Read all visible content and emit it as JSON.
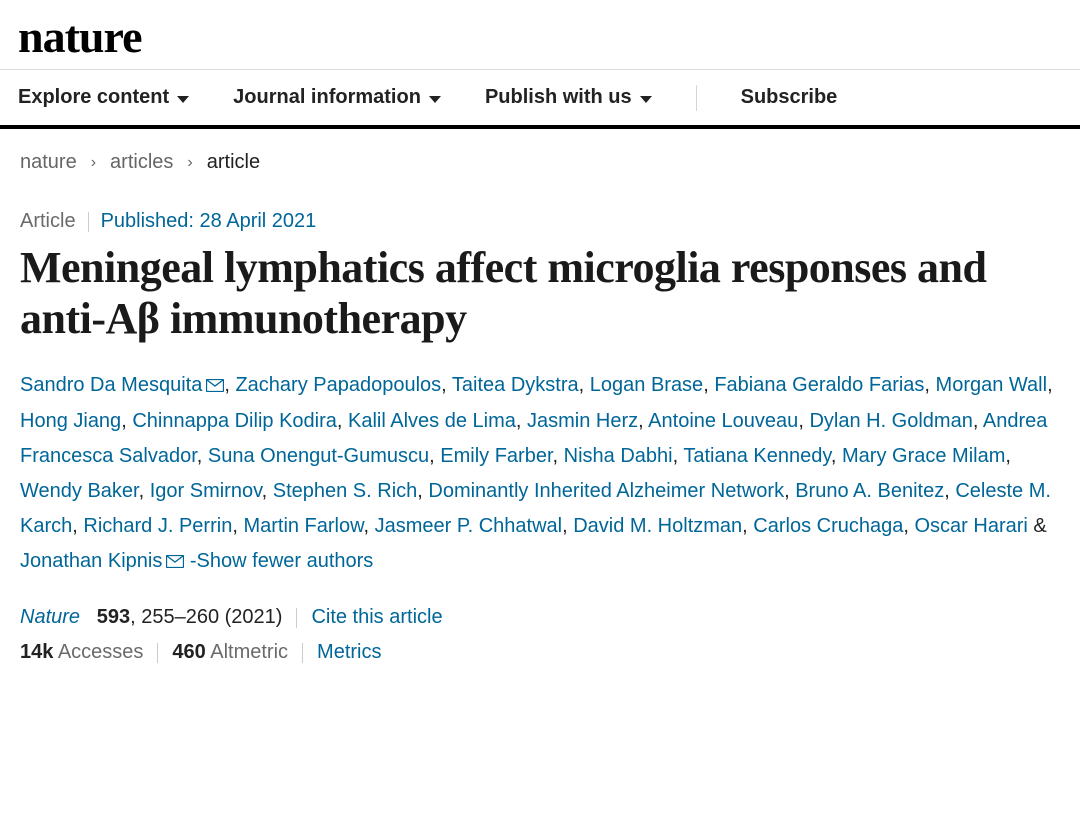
{
  "logo": "nature",
  "nav": {
    "items": [
      {
        "label": "Explore content",
        "has_chevron": true
      },
      {
        "label": "Journal information",
        "has_chevron": true
      },
      {
        "label": "Publish with us",
        "has_chevron": true
      }
    ],
    "subscribe": "Subscribe"
  },
  "breadcrumbs": {
    "items": [
      "nature",
      "articles"
    ],
    "current": "article"
  },
  "article": {
    "type": "Article",
    "published_label": "Published: 28 April 2021",
    "title": "Meningeal lymphatics affect microglia responses and anti-Aβ immunotherapy",
    "authors": [
      {
        "name": "Sandro Da Mesquita",
        "corresponding": true
      },
      {
        "name": "Zachary Papadopoulos"
      },
      {
        "name": "Taitea Dykstra"
      },
      {
        "name": "Logan Brase"
      },
      {
        "name": "Fabiana Geraldo Farias"
      },
      {
        "name": "Morgan Wall"
      },
      {
        "name": "Hong Jiang"
      },
      {
        "name": "Chinnappa Dilip Kodira"
      },
      {
        "name": "Kalil Alves de Lima"
      },
      {
        "name": "Jasmin Herz"
      },
      {
        "name": "Antoine Louveau"
      },
      {
        "name": "Dylan H. Goldman"
      },
      {
        "name": "Andrea Francesca Salvador"
      },
      {
        "name": "Suna Onengut-Gumuscu"
      },
      {
        "name": "Emily Farber"
      },
      {
        "name": "Nisha Dabhi"
      },
      {
        "name": "Tatiana Kennedy"
      },
      {
        "name": "Mary Grace Milam"
      },
      {
        "name": "Wendy Baker"
      },
      {
        "name": "Igor Smirnov"
      },
      {
        "name": "Stephen S. Rich"
      },
      {
        "name": "Dominantly Inherited Alzheimer Network"
      },
      {
        "name": "Bruno A. Benitez"
      },
      {
        "name": "Celeste M. Karch"
      },
      {
        "name": "Richard J. Perrin"
      },
      {
        "name": "Martin Farlow"
      },
      {
        "name": "Jasmeer P. Chhatwal"
      },
      {
        "name": "David M. Holtzman"
      },
      {
        "name": "Carlos Cruchaga"
      },
      {
        "name": "Oscar Harari"
      },
      {
        "name": "Jonathan Kipnis",
        "corresponding": true
      }
    ],
    "toggle_authors_label": "-Show fewer authors",
    "citation": {
      "journal": "Nature",
      "volume": "593",
      "pages": "255–260 (2021)",
      "cite_label": "Cite this article"
    },
    "metrics": {
      "accesses_count": "14k",
      "accesses_label": "Accesses",
      "altmetric_count": "460",
      "altmetric_label": "Altmetric",
      "metrics_label": "Metrics"
    }
  },
  "colors": {
    "link": "#006699",
    "text": "#222222",
    "muted": "#6a6a6a",
    "border": "#dcdcdc"
  }
}
